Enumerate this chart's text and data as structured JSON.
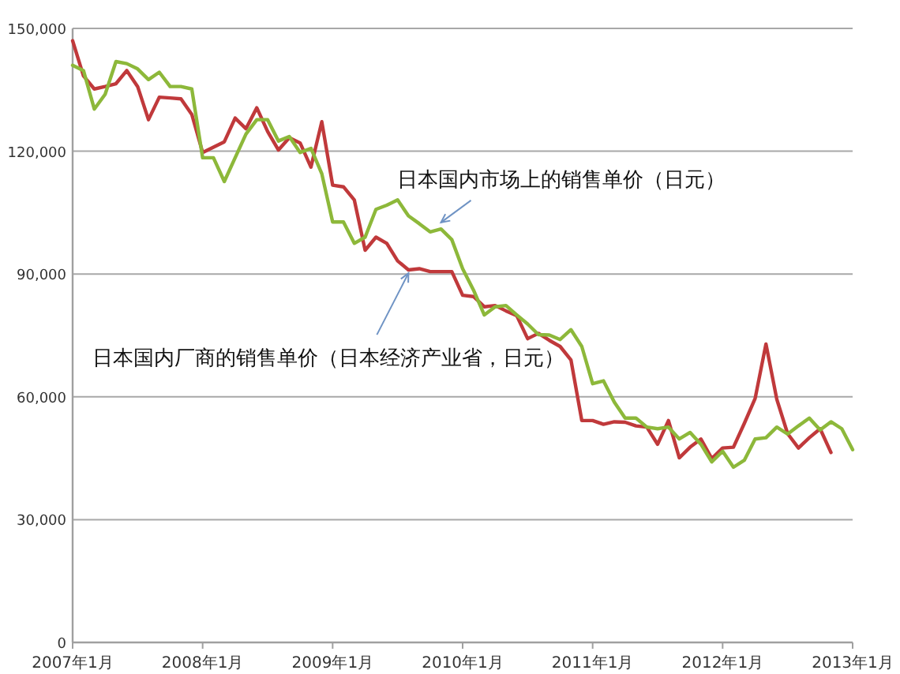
{
  "chart_data": {
    "type": "line",
    "x": [
      "2007-01",
      "2007-02",
      "2007-03",
      "2007-04",
      "2007-05",
      "2007-06",
      "2007-07",
      "2007-08",
      "2007-09",
      "2007-10",
      "2007-11",
      "2007-12",
      "2008-01",
      "2008-02",
      "2008-03",
      "2008-04",
      "2008-05",
      "2008-06",
      "2008-07",
      "2008-08",
      "2008-09",
      "2008-10",
      "2008-11",
      "2008-12",
      "2009-01",
      "2009-02",
      "2009-03",
      "2009-04",
      "2009-05",
      "2009-06",
      "2009-07",
      "2009-08",
      "2009-09",
      "2009-10",
      "2009-11",
      "2009-12",
      "2010-01",
      "2010-02",
      "2010-03",
      "2010-04",
      "2010-05",
      "2010-06",
      "2010-07",
      "2010-08",
      "2010-09",
      "2010-10",
      "2010-11",
      "2010-12",
      "2011-01",
      "2011-02",
      "2011-03",
      "2011-04",
      "2011-05",
      "2011-06",
      "2011-07",
      "2011-08",
      "2011-09",
      "2011-10",
      "2011-11",
      "2011-12",
      "2012-01",
      "2012-02",
      "2012-03",
      "2012-04",
      "2012-05",
      "2012-06",
      "2012-07",
      "2012-08",
      "2012-09",
      "2012-10",
      "2012-11",
      "2012-12",
      "2013-01"
    ],
    "series": [
      {
        "color": "#c0393b",
        "values": [
          147000,
          138400,
          135200,
          135800,
          136500,
          139700,
          135800,
          127700,
          133200,
          133000,
          132800,
          129000,
          119700,
          121000,
          122300,
          128100,
          125500,
          130600,
          124800,
          120300,
          123300,
          122000,
          116100,
          127200,
          111700,
          111300,
          108100,
          95800,
          99000,
          97500,
          93200,
          91000,
          91300,
          90600,
          90600,
          90600,
          84800,
          84500,
          82000,
          82300,
          81000,
          79800,
          74200,
          75500,
          73800,
          72300,
          69000,
          54200,
          54200,
          53300,
          53900,
          53800,
          52900,
          52600,
          48400,
          54200,
          45100,
          47700,
          49700,
          44900,
          47500,
          47700,
          53500,
          59600,
          72900,
          59400,
          51000,
          47500,
          50000,
          52200,
          46400,
          null,
          null
        ]
      },
      {
        "color": "#8db83a",
        "values": [
          141000,
          139700,
          130300,
          133900,
          141900,
          141400,
          140100,
          137500,
          139300,
          135800,
          135800,
          135200,
          118400,
          118400,
          112600,
          118400,
          124200,
          127700,
          127700,
          122500,
          123600,
          119700,
          120700,
          114500,
          102700,
          102700,
          97500,
          99000,
          105800,
          106800,
          108100,
          104200,
          102300,
          100300,
          101000,
          98400,
          91300,
          86100,
          80000,
          82000,
          82300,
          80000,
          77800,
          75200,
          75100,
          74000,
          76400,
          72300,
          63200,
          63900,
          58700,
          54800,
          54800,
          52600,
          52200,
          52600,
          49700,
          51300,
          48400,
          44100,
          46700,
          42800,
          44500,
          49700,
          50000,
          52600,
          50900,
          52900,
          54800,
          51900,
          53900,
          52200,
          47100
        ]
      }
    ],
    "xlim": [
      "2007-01",
      "2013-01"
    ],
    "xticks": [
      {
        "value": "2007-01",
        "label": "2007年1月"
      },
      {
        "value": "2008-01",
        "label": "2008年1月"
      },
      {
        "value": "2009-01",
        "label": "2009年1月"
      },
      {
        "value": "2010-01",
        "label": "2010年1月"
      },
      {
        "value": "2011-01",
        "label": "2011年1月"
      },
      {
        "value": "2012-01",
        "label": "2012年1月"
      },
      {
        "value": "2013-01",
        "label": "2013年1月"
      }
    ],
    "ylim": [
      0,
      150000
    ],
    "yticks": [
      0,
      {
        "value": 30000,
        "label": "30,000"
      },
      {
        "value": 60000,
        "label": "60,000"
      },
      {
        "value": 90000,
        "label": "90,000"
      },
      {
        "value": 120000,
        "label": "120,000"
      },
      {
        "value": 150000,
        "label": "150,000"
      }
    ],
    "grid": "y",
    "marker": "none",
    "line_style": "solid",
    "annotations": [
      {
        "text": "日本国内市场上的销售单价（日元）",
        "x": "2009-11",
        "y": 102600
      },
      {
        "text": "日本国内厂商的销售单价（日本经济产业省，日元）",
        "x": "2009-08",
        "y": 90200
      }
    ]
  }
}
